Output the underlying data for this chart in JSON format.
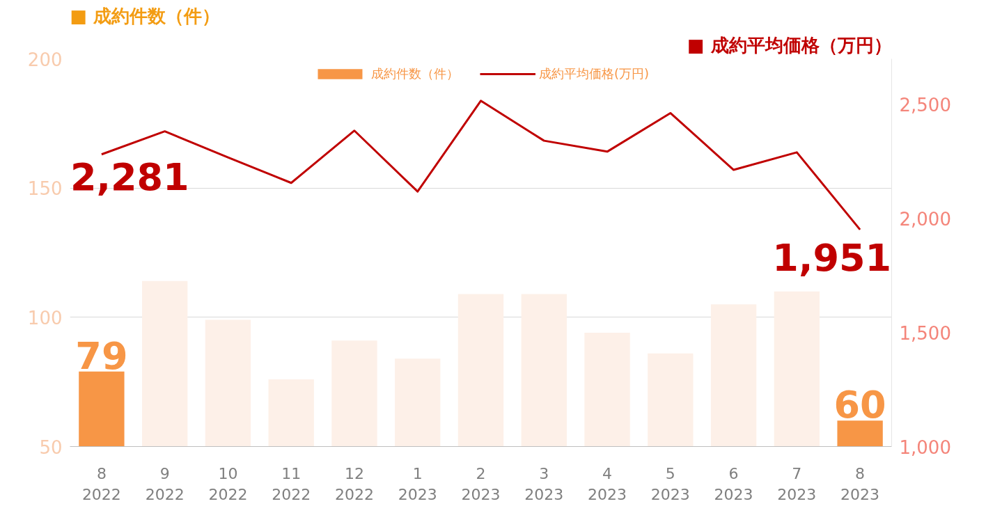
{
  "chart_data": {
    "type": "bar",
    "ylabel": "■ 成約件数（件）",
    "y2label": "■ 成約平均価格（万円）",
    "categories": [
      "8\n2022",
      "9\n2022",
      "10\n2022",
      "11\n2022",
      "12\n2022",
      "1\n2023",
      "2\n2023",
      "3\n2023",
      "4\n2023",
      "5\n2023",
      "6\n2023",
      "7\n2023",
      "8\n2023"
    ],
    "series": [
      {
        "name": "成約件数（件）",
        "color": "#fdf0e8",
        "colors": [
          "#f79646",
          "#fdf0e8",
          "#fdf0e8",
          "#fdf0e8",
          "#fdf0e8",
          "#fdf0e8",
          "#fdf0e8",
          "#fdf0e8",
          "#fdf0e8",
          "#fdf0e8",
          "#fdf0e8",
          "#fdf0e8",
          "#f79646"
        ],
        "values": [
          79,
          114,
          99,
          76,
          91,
          84,
          109,
          109,
          94,
          86,
          105,
          110,
          60
        ],
        "value_labels": [
          "79",
          null,
          null,
          null,
          null,
          null,
          null,
          null,
          null,
          null,
          null,
          null,
          "60"
        ]
      },
      {
        "name": "成約平均価格(万円)",
        "type": "line",
        "axis": "y2",
        "color": "#c00000",
        "values": [
          2281,
          2382,
          2268,
          2156,
          2385,
          2118,
          2516,
          2341,
          2293,
          2462,
          2213,
          2290,
          1951
        ],
        "value_labels": [
          "2,281",
          null,
          null,
          null,
          null,
          null,
          null,
          null,
          null,
          null,
          null,
          null,
          "1,951"
        ]
      }
    ],
    "ylim": [
      50,
      200
    ],
    "yticks": [
      50,
      100,
      150,
      200
    ],
    "y2lim": [
      1000,
      2700
    ],
    "y2ticks": [
      {
        "value": 1000,
        "label": "1,000"
      },
      {
        "value": 1500,
        "label": "1,500"
      },
      {
        "value": 2000,
        "label": "2,000"
      },
      {
        "value": 2500,
        "label": "2,500"
      }
    ],
    "grid": "y",
    "legend": "top",
    "marker": "none",
    "line_style": "solid"
  }
}
